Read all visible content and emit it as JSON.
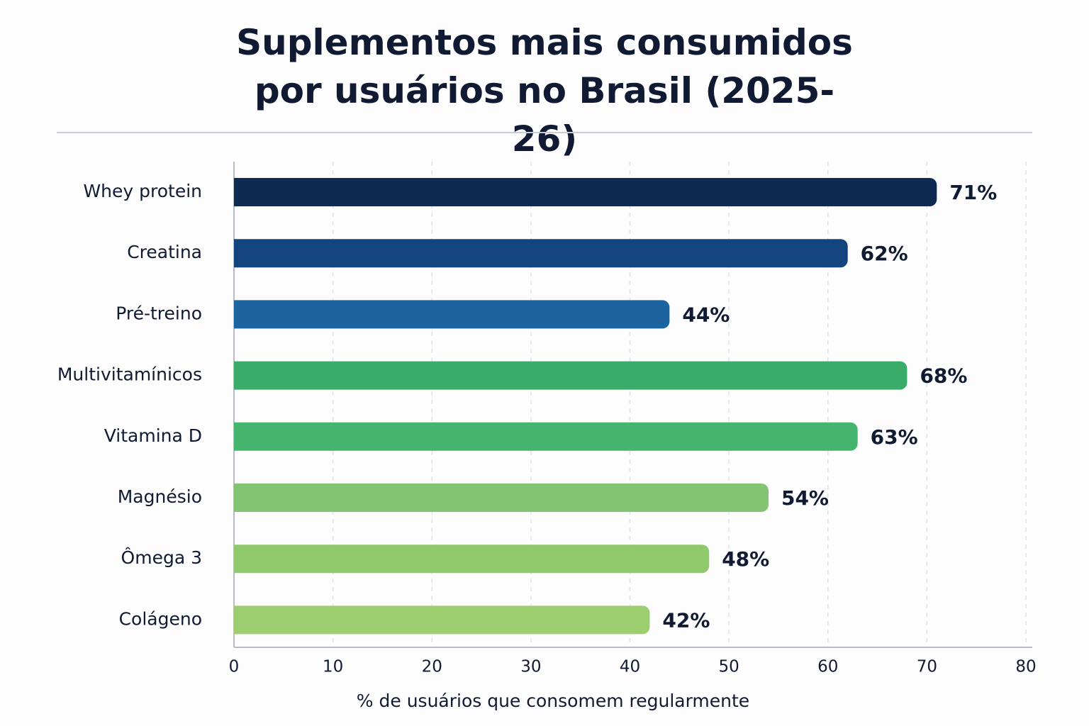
{
  "chart_data": {
    "type": "hbar",
    "title": "Suplementos mais consumidos por usuários no Brasil (2025-26)",
    "xlabel": "% de usuários que consomem regularmente",
    "categories": [
      "Whey protein",
      "Creatina",
      "Pré-treino",
      "Multivitamínicos",
      "Vitamina D",
      "Magnésio",
      "Ômega 3",
      "Colágeno"
    ],
    "values": [
      71,
      62,
      44,
      68,
      63,
      54,
      48,
      42
    ],
    "value_labels": [
      "71%",
      "62%",
      "44%",
      "68%",
      "63%",
      "54%",
      "48%",
      "42%"
    ],
    "colors": [
      "#0f2a52",
      "#14447e",
      "#1b64a0",
      "#3aac6a",
      "#45b46e",
      "#82c472",
      "#8fc96c",
      "#9ccd6f"
    ],
    "xlim": [
      0,
      80
    ],
    "xticks": [
      0,
      10,
      20,
      30,
      40,
      50,
      60,
      70,
      80
    ],
    "grid": true
  }
}
